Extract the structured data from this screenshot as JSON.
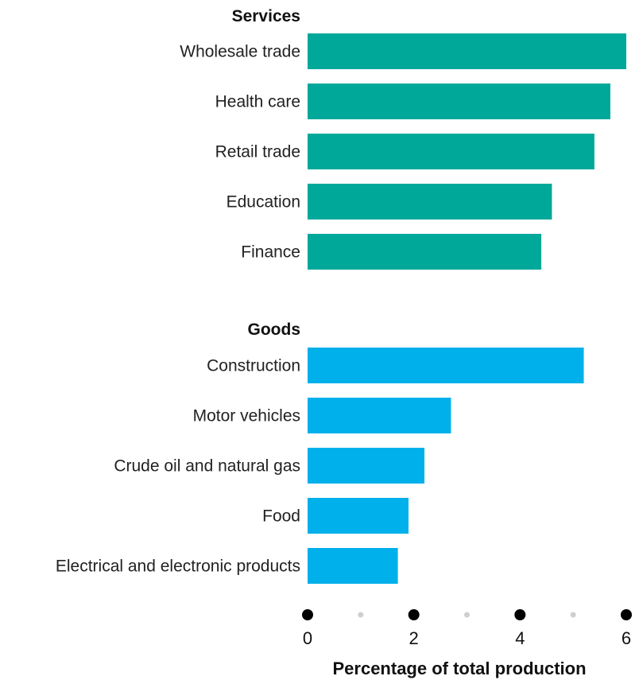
{
  "chart_data": {
    "type": "bar",
    "orientation": "horizontal",
    "xlabel": "Percentage of total production",
    "xlim": [
      0,
      6
    ],
    "ticks": [
      0,
      2,
      4,
      6
    ],
    "minor_ticks": [
      1,
      3,
      5
    ],
    "grid": false,
    "groups": [
      {
        "name": "Services",
        "color": "#00a89a",
        "categories": [
          "Wholesale trade",
          "Health care",
          "Retail trade",
          "Education",
          "Finance"
        ],
        "values": [
          6.0,
          5.7,
          5.4,
          4.6,
          4.4
        ]
      },
      {
        "name": "Goods",
        "color": "#00b0ea",
        "categories": [
          "Construction",
          "Motor vehicles",
          "Crude oil and natural gas",
          "Food",
          "Electrical and electronic products"
        ],
        "values": [
          5.2,
          2.7,
          2.2,
          1.9,
          1.7
        ]
      }
    ]
  }
}
